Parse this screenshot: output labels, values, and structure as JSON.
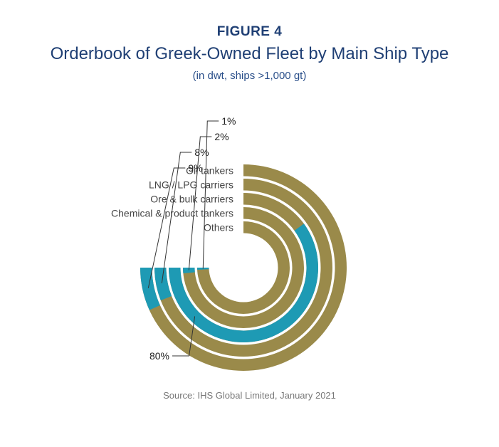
{
  "figure_label": "FIGURE 4",
  "source": "Source: IHS Global Limited, January 2021",
  "colors": {
    "share": "#1e9ab4",
    "remainder": "#9a8a4a",
    "title": "#1f3f74"
  },
  "chart_data": {
    "type": "radial-bar",
    "title": "Orderbook of Greek-Owned Fleet by Main Ship Type",
    "subtitle": "(in dwt, ships >1,000 gt)",
    "unit": "%",
    "categories": [
      "Oil tankers",
      "LNG / LPG carriers",
      "Ore & bulk carriers",
      "Chemical & product tankers",
      "Others"
    ],
    "values": [
      9,
      8,
      80,
      2,
      1
    ],
    "value_labels": [
      "9%",
      "8%",
      "80%",
      "2%",
      "1%"
    ]
  }
}
